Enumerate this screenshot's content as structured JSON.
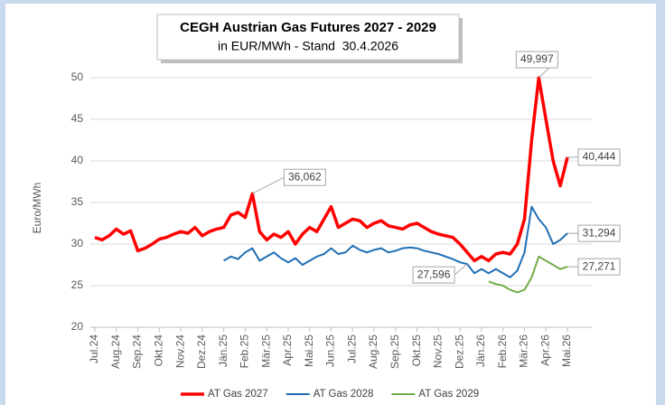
{
  "chart_data": {
    "type": "line",
    "title": "CEGH Austrian Gas Futures 2027 - 2029",
    "subtitle": "in EUR/MWh - Stand  30.4.2026",
    "y_label": "Euro/MWh",
    "categories": [
      "Jul.24",
      null,
      null,
      "Aug.24",
      null,
      null,
      "Sep.24",
      null,
      null,
      "Okt.24",
      null,
      null,
      "Nov.24",
      null,
      null,
      "Dez.24",
      null,
      null,
      "Jän.25",
      null,
      null,
      "Feb.25",
      null,
      null,
      "Mär.25",
      null,
      null,
      "Apr.25",
      null,
      null,
      "Mai.25",
      null,
      null,
      "Jun.25",
      null,
      null,
      "Jul.25",
      null,
      null,
      "Aug.25",
      null,
      null,
      "Sep.25",
      null,
      null,
      "Okt.25",
      null,
      null,
      "Nov.25",
      null,
      null,
      "Dez.25",
      null,
      null,
      "Jän.26",
      null,
      null,
      "Feb.26",
      null,
      null,
      "Mär.26",
      null,
      null,
      "Apr.26",
      null,
      null,
      "Mai.26"
    ],
    "series": [
      {
        "name": "AT Gas 2027",
        "color": "#ff0000",
        "width": 3.5,
        "values": [
          30.8,
          30.5,
          31.0,
          31.8,
          31.2,
          31.6,
          29.2,
          29.5,
          30.0,
          30.6,
          30.8,
          31.2,
          31.5,
          31.3,
          32.0,
          31.0,
          31.5,
          31.8,
          32.0,
          33.5,
          33.8,
          33.2,
          36.062,
          31.5,
          30.5,
          31.2,
          30.8,
          31.5,
          30.0,
          31.2,
          32.0,
          31.5,
          33.0,
          34.5,
          32.0,
          32.5,
          33.0,
          32.8,
          32.0,
          32.5,
          32.8,
          32.2,
          32.0,
          31.8,
          32.3,
          32.5,
          32.0,
          31.5,
          31.2,
          31.0,
          30.8,
          30.0,
          29.0,
          28.0,
          28.5,
          28.0,
          28.8,
          29.0,
          28.8,
          30.0,
          33.0,
          42.5,
          49.997,
          45.0,
          40.0,
          37.0,
          40.444
        ],
        "value_labels": [
          null,
          null,
          null,
          null,
          null,
          null,
          null,
          null,
          null,
          null,
          null,
          null,
          null,
          null,
          null,
          null,
          null,
          null,
          null,
          null,
          null,
          null,
          "36,062",
          null,
          null,
          null,
          null,
          null,
          null,
          null,
          null,
          null,
          null,
          null,
          null,
          null,
          null,
          null,
          null,
          null,
          null,
          null,
          null,
          null,
          null,
          null,
          null,
          null,
          null,
          null,
          null,
          null,
          null,
          null,
          null,
          null,
          null,
          null,
          null,
          null,
          null,
          null,
          "49,997",
          null,
          null,
          null,
          "40,444"
        ]
      },
      {
        "name": "AT Gas 2028",
        "color": "#1f6fb5",
        "width": 2,
        "values": [
          null,
          null,
          null,
          null,
          null,
          null,
          null,
          null,
          null,
          null,
          null,
          null,
          null,
          null,
          null,
          null,
          null,
          null,
          28.0,
          28.5,
          28.2,
          29.0,
          29.5,
          28.0,
          28.5,
          29.0,
          28.3,
          27.8,
          28.3,
          27.5,
          28.0,
          28.5,
          28.8,
          29.5,
          28.8,
          29.0,
          29.8,
          29.3,
          29.0,
          29.3,
          29.5,
          29.0,
          29.2,
          29.5,
          29.6,
          29.5,
          29.2,
          29.0,
          28.8,
          28.5,
          28.2,
          27.8,
          27.596,
          26.5,
          27.0,
          26.5,
          27.0,
          26.5,
          26.0,
          26.8,
          29.0,
          34.5,
          33.0,
          32.0,
          30.0,
          30.5,
          31.294
        ],
        "value_labels": [
          null,
          null,
          null,
          null,
          null,
          null,
          null,
          null,
          null,
          null,
          null,
          null,
          null,
          null,
          null,
          null,
          null,
          null,
          null,
          null,
          null,
          null,
          null,
          null,
          null,
          null,
          null,
          null,
          null,
          null,
          null,
          null,
          null,
          null,
          null,
          null,
          null,
          null,
          null,
          null,
          null,
          null,
          null,
          null,
          null,
          null,
          null,
          null,
          null,
          null,
          null,
          null,
          "27,596",
          null,
          null,
          null,
          null,
          null,
          null,
          null,
          null,
          null,
          null,
          null,
          null,
          null,
          "31,294"
        ]
      },
      {
        "name": "AT Gas 2029",
        "color": "#70ad47",
        "width": 2,
        "values": [
          null,
          null,
          null,
          null,
          null,
          null,
          null,
          null,
          null,
          null,
          null,
          null,
          null,
          null,
          null,
          null,
          null,
          null,
          null,
          null,
          null,
          null,
          null,
          null,
          null,
          null,
          null,
          null,
          null,
          null,
          null,
          null,
          null,
          null,
          null,
          null,
          null,
          null,
          null,
          null,
          null,
          null,
          null,
          null,
          null,
          null,
          null,
          null,
          null,
          null,
          null,
          null,
          null,
          null,
          null,
          25.5,
          25.2,
          25.0,
          24.5,
          24.2,
          24.5,
          26.0,
          28.5,
          28.0,
          27.5,
          27.0,
          27.271
        ],
        "value_labels": [
          null,
          null,
          null,
          null,
          null,
          null,
          null,
          null,
          null,
          null,
          null,
          null,
          null,
          null,
          null,
          null,
          null,
          null,
          null,
          null,
          null,
          null,
          null,
          null,
          null,
          null,
          null,
          null,
          null,
          null,
          null,
          null,
          null,
          null,
          null,
          null,
          null,
          null,
          null,
          null,
          null,
          null,
          null,
          null,
          null,
          null,
          null,
          null,
          null,
          null,
          null,
          null,
          null,
          null,
          null,
          null,
          null,
          null,
          null,
          null,
          null,
          null,
          null,
          null,
          null,
          null,
          "27,271"
        ]
      }
    ],
    "ylim": [
      20,
      50
    ],
    "yticks": [
      20,
      25,
      30,
      35,
      40,
      45,
      50
    ],
    "grid": true,
    "legend": "bottom"
  }
}
